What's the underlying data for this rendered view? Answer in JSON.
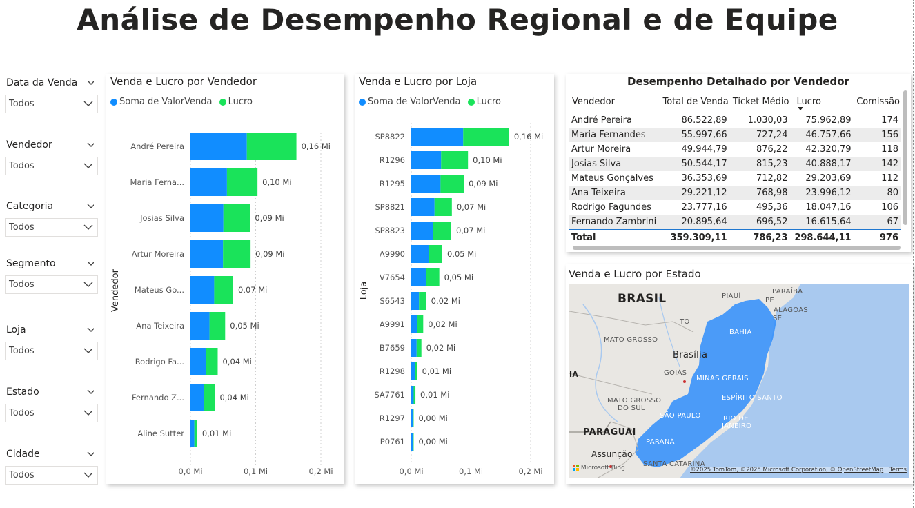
{
  "page": {
    "title": "Análise de Desempenho Regional e de Equipe"
  },
  "colors": {
    "venda": "#118DFF",
    "lucro": "#1AE35A",
    "table_rule": "#1F77D0"
  },
  "slicers": [
    {
      "label": "Data da Venda",
      "value": "Todos"
    },
    {
      "label": "Vendedor",
      "value": "Todos"
    },
    {
      "label": "Categoria",
      "value": "Todos"
    },
    {
      "label": "Segmento",
      "value": "Todos"
    },
    {
      "label": "Loja",
      "value": "Todos"
    },
    {
      "label": "Estado",
      "value": "Todos"
    },
    {
      "label": "Cidade",
      "value": "Todos"
    }
  ],
  "chart_vendedor": {
    "title": "Venda e Lucro por Vendedor",
    "legend": [
      "Soma de ValorVenda",
      "Lucro"
    ],
    "ylabel": "Vendedor",
    "xticks": [
      "0,0 Mi",
      "0,1 Mi",
      "0,2 Mi"
    ]
  },
  "chart_loja": {
    "title": "Venda e Lucro por Loja",
    "legend": [
      "Soma de ValorVenda",
      "Lucro"
    ],
    "ylabel": "Loja",
    "xticks": [
      "0,0 Mi",
      "0,1 Mi",
      "0,2 Mi"
    ]
  },
  "chart_data": [
    {
      "type": "bar",
      "orientation": "horizontal",
      "stacked": true,
      "title": "Venda e Lucro por Vendedor",
      "ylabel": "Vendedor",
      "xlim": [
        0,
        0.2
      ],
      "xunit": "Mi",
      "categories": [
        "André Pereira",
        "Maria Ferna...",
        "Josias Silva",
        "Artur Moreira",
        "Mateus Go...",
        "Ana Teixeira",
        "Rodrigo Fa...",
        "Fernando Z...",
        "Aline Sutter"
      ],
      "series": [
        {
          "name": "Soma de ValorVenda",
          "values": [
            0.0865,
            0.056,
            0.0505,
            0.0499,
            0.0364,
            0.0292,
            0.0238,
            0.0209,
            0.006
          ]
        },
        {
          "name": "Lucro",
          "values": [
            0.076,
            0.0468,
            0.0409,
            0.0423,
            0.0292,
            0.024,
            0.018,
            0.0166,
            0.0045
          ]
        }
      ],
      "total_labels": [
        "0,16 Mi",
        "0,10 Mi",
        "0,09 Mi",
        "0,09 Mi",
        "0,07 Mi",
        "0,05 Mi",
        "0,04 Mi",
        "0,04 Mi",
        "0,01 Mi"
      ]
    },
    {
      "type": "bar",
      "orientation": "horizontal",
      "stacked": true,
      "title": "Venda e Lucro por Loja",
      "ylabel": "Loja",
      "xlim": [
        0,
        0.2
      ],
      "xunit": "Mi",
      "categories": [
        "SP8822",
        "R1296",
        "R1295",
        "SP8821",
        "SP8823",
        "A9990",
        "V7654",
        "S6543",
        "A9991",
        "B7659",
        "R1298",
        "SA7761",
        "R1297",
        "P0761"
      ],
      "series": [
        {
          "name": "Soma de ValorVenda",
          "values": [
            0.087,
            0.05,
            0.049,
            0.039,
            0.036,
            0.029,
            0.025,
            0.013,
            0.01,
            0.009,
            0.006,
            0.004,
            0.003,
            0.003
          ]
        },
        {
          "name": "Lucro",
          "values": [
            0.077,
            0.045,
            0.039,
            0.029,
            0.031,
            0.023,
            0.022,
            0.012,
            0.01,
            0.008,
            0.004,
            0.003,
            0.001,
            0.001
          ]
        }
      ],
      "total_labels": [
        "0,16 Mi",
        "0,10 Mi",
        "0,09 Mi",
        "0,07 Mi",
        "0,07 Mi",
        "0,05 Mi",
        "0,05 Mi",
        "0,02 Mi",
        "0,02 Mi",
        "0,02 Mi",
        "0,01 Mi",
        "0,01 Mi",
        "0,00 Mi",
        "0,00 Mi"
      ]
    }
  ],
  "table": {
    "title": "Desempenho Detalhado por Vendedor",
    "columns": [
      "Vendedor",
      "Total de Venda",
      "Ticket Médio",
      "Lucro",
      "Comissão"
    ],
    "rows": [
      [
        "André Pereira",
        "86.522,89",
        "1.030,03",
        "75.962,89",
        "174"
      ],
      [
        "Maria Fernandes",
        "55.997,66",
        "727,24",
        "46.757,66",
        "156"
      ],
      [
        "Artur Moreira",
        "49.944,79",
        "876,22",
        "42.320,79",
        "118"
      ],
      [
        "Josias Silva",
        "50.544,17",
        "815,23",
        "40.888,17",
        "142"
      ],
      [
        "Mateus Gonçalves",
        "36.353,69",
        "712,82",
        "29.203,69",
        "112"
      ],
      [
        "Ana Teixeira",
        "29.221,12",
        "768,98",
        "23.996,12",
        "80"
      ],
      [
        "Rodrigo Fagundes",
        "23.777,16",
        "495,36",
        "18.047,16",
        "106"
      ],
      [
        "Fernando Zambrini",
        "20.895,64",
        "696,52",
        "16.615,64",
        "67"
      ]
    ],
    "total": [
      "Total",
      "359.309,11",
      "786,23",
      "298.644,11",
      "976"
    ]
  },
  "map": {
    "title": "Venda e Lucro por Estado",
    "labels": {
      "brasil": "BRASIL",
      "piaui": "PIAUÍ",
      "paraiba": "PARAÍBA",
      "pe": "PE",
      "alagoas": "ALAGOAS",
      "se": "SE",
      "to": "TO",
      "bahia": "BAHIA",
      "mato_grosso": "MATO GROSSO",
      "brasilia": "Brasília",
      "goias": "GOIÁS",
      "ia": "IA",
      "minas_gerais": "MINAS GERAIS",
      "espirito_santo": "ESPÍRITO SANTO",
      "mato_grosso_do_sul_1": "MATO GROSSO",
      "mato_grosso_do_sul_2": "DO SUL",
      "sao_paulo": "SÃO PAULO",
      "rio_1": "RIO DE",
      "rio_2": "JANEIRO",
      "paraguai": "PARAGUAI",
      "parana": "PARANÁ",
      "assuncao": "Assunção",
      "santa_catarina": "SANTA CATARINA"
    },
    "bing_logo": "Microsoft Bing",
    "attribution": "©2025 TomTom, ©2025 Microsoft Corporation, © OpenStreetMap",
    "terms": "Terms"
  }
}
